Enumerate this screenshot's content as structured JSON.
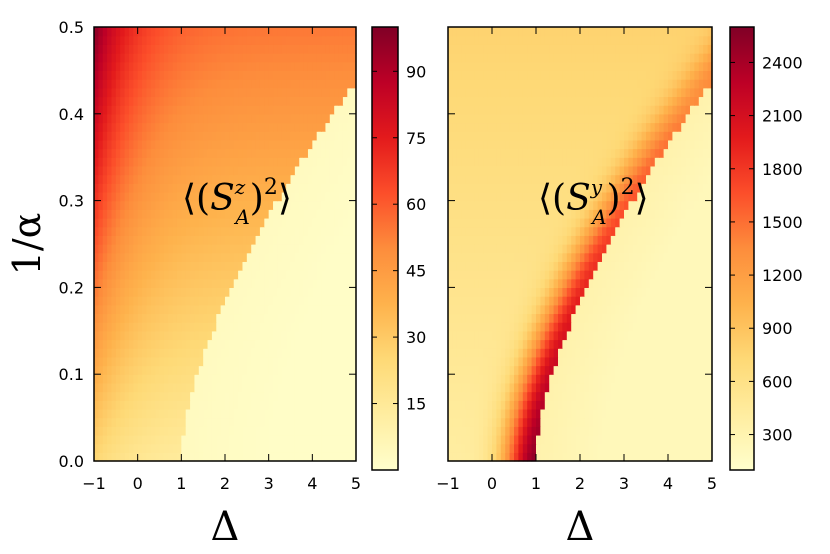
{
  "chart_data": [
    {
      "type": "heatmap",
      "title": "",
      "annotation": {
        "open": "⟨(",
        "symbol": "S",
        "sup": "z",
        "sub": "A",
        "close": ")",
        "power": "2",
        "end": "⟩"
      },
      "xlabel": "Δ",
      "ylabel": "1/α",
      "xlim": [
        -1,
        5
      ],
      "ylim": [
        0,
        0.5
      ],
      "xticks": [
        -1,
        0,
        1,
        2,
        3,
        4,
        5
      ],
      "yticks": [
        0.0,
        0.1,
        0.2,
        0.3,
        0.4,
        0.5
      ],
      "ytick_labels": [
        "0.0",
        "0.1",
        "0.2",
        "0.3",
        "0.4",
        "0.5"
      ],
      "colorbar": {
        "min": 0,
        "max": 100,
        "ticks": [
          15,
          30,
          45,
          60,
          75,
          90
        ]
      },
      "colormap": [
        "#ffffcc",
        "#ffeda0",
        "#fed976",
        "#feb24c",
        "#fd8d3c",
        "#fc4e2a",
        "#e31a1c",
        "#bd0026",
        "#800026"
      ],
      "boundary": "ordered region: Δ > 1 + 1.15·(1/α)^1.35 ... saturates near Δ=5 at 1/α≈0.38",
      "value_range_description": "High (~95) near Δ=-1, 1/α=0.5; ~40-45 in upper region; ~1 in lower-right region"
    },
    {
      "type": "heatmap",
      "title": "",
      "annotation": {
        "open": "⟨(",
        "symbol": "S",
        "sup": "y",
        "sub": "A",
        "close": ")",
        "power": "2",
        "end": "⟩"
      },
      "xlabel": "Δ",
      "ylabel": "",
      "xlim": [
        -1,
        5
      ],
      "ylim": [
        0,
        0.5
      ],
      "xticks": [
        -1,
        0,
        1,
        2,
        3,
        4,
        5
      ],
      "colorbar": {
        "min": 100,
        "max": 2600,
        "ticks": [
          300,
          600,
          900,
          1200,
          1500,
          1800,
          2100,
          2400
        ]
      },
      "colormap": [
        "#ffffcc",
        "#ffeda0",
        "#fed976",
        "#feb24c",
        "#fd8d3c",
        "#fc4e2a",
        "#e31a1c",
        "#bd0026",
        "#800026"
      ],
      "value_range_description": "Peak ~2600 just left of phase boundary near Δ=1, low 1/α; ~200-500 elsewhere"
    }
  ]
}
